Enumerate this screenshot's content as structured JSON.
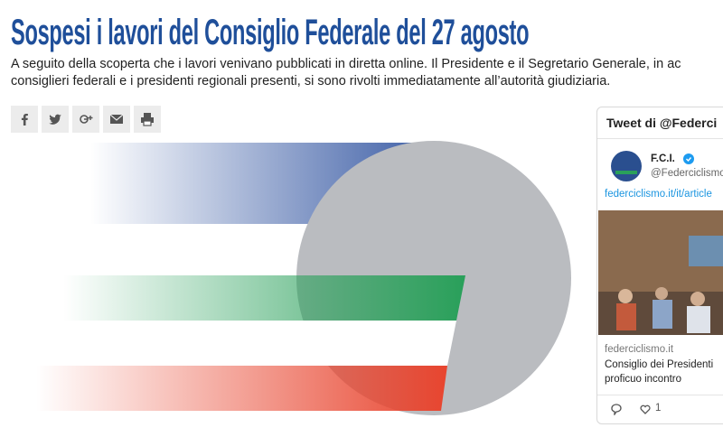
{
  "article": {
    "title": "Sospesi i lavori del Consiglio Federale del 27 agosto",
    "lead_lines": [
      "A seguito della scoperta che i lavori venivano pubblicati in diretta online. Il Presidente e il Segretario Generale, in ac",
      "consiglieri federali e i presidenti regionali presenti, si sono rivolti immediatamente all’autorità giudiziaria."
    ]
  },
  "tweet_embed": {
    "header": "Tweet di @Federci",
    "name": "F.C.I.",
    "handle": "@Federciclismo",
    "link": "federciclismo.it/it/article",
    "card": {
      "domain": "federciclismo.it",
      "title_lines": [
        "Consiglio dei Presidenti",
        "proficuo incontro"
      ]
    },
    "likes": 1
  }
}
